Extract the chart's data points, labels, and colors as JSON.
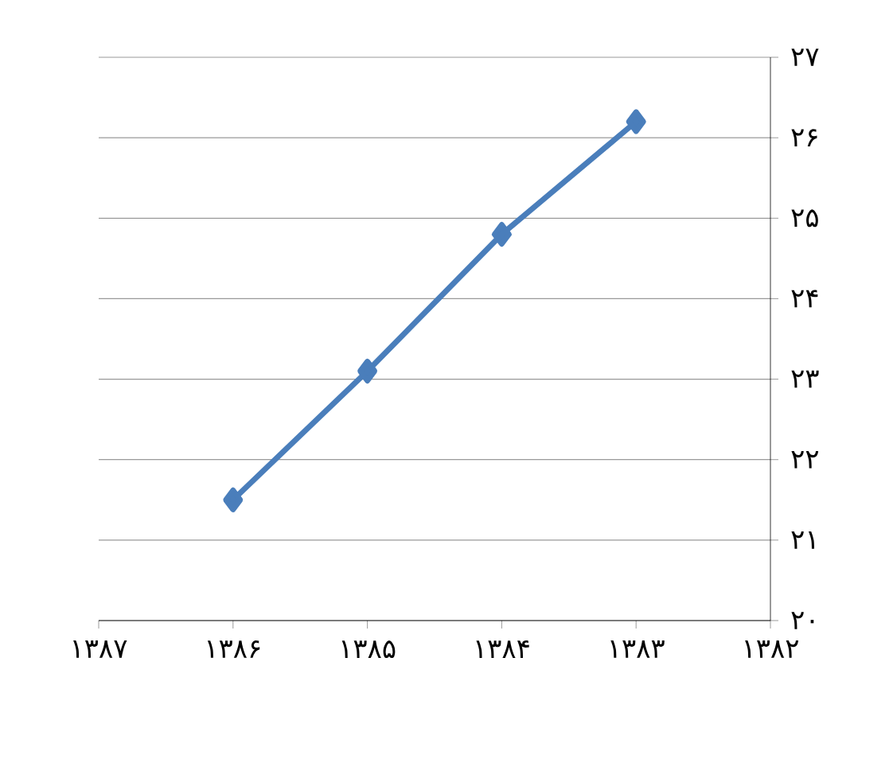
{
  "chart_data": {
    "type": "line",
    "x": [
      1386,
      1385,
      1384,
      1383
    ],
    "series": [
      {
        "color": "#4a7ebb",
        "values": [
          21.5,
          23.1,
          24.8,
          26.2
        ]
      }
    ],
    "xlim": [
      1387,
      1382
    ],
    "xticks": [
      {
        "value": 1387,
        "label": "۱۳۸۷"
      },
      {
        "value": 1386,
        "label": "۱۳۸۶"
      },
      {
        "value": 1385,
        "label": "۱۳۸۵"
      },
      {
        "value": 1384,
        "label": "۱۳۸۴"
      },
      {
        "value": 1383,
        "label": "۱۳۸۳"
      },
      {
        "value": 1382,
        "label": "۱۳۸۲"
      }
    ],
    "ylim": [
      20,
      27
    ],
    "yticks": [
      {
        "value": 20,
        "label": "۲۰"
      },
      {
        "value": 21,
        "label": "۲۱"
      },
      {
        "value": 22,
        "label": "۲۲"
      },
      {
        "value": 23,
        "label": "۲۳"
      },
      {
        "value": 24,
        "label": "۲۴"
      },
      {
        "value": 25,
        "label": "۲۵"
      },
      {
        "value": 26,
        "label": "۲۶"
      },
      {
        "value": 27,
        "label": "۲۷"
      }
    ],
    "grid": "y",
    "marker": "diamond",
    "line_style": "solid"
  }
}
